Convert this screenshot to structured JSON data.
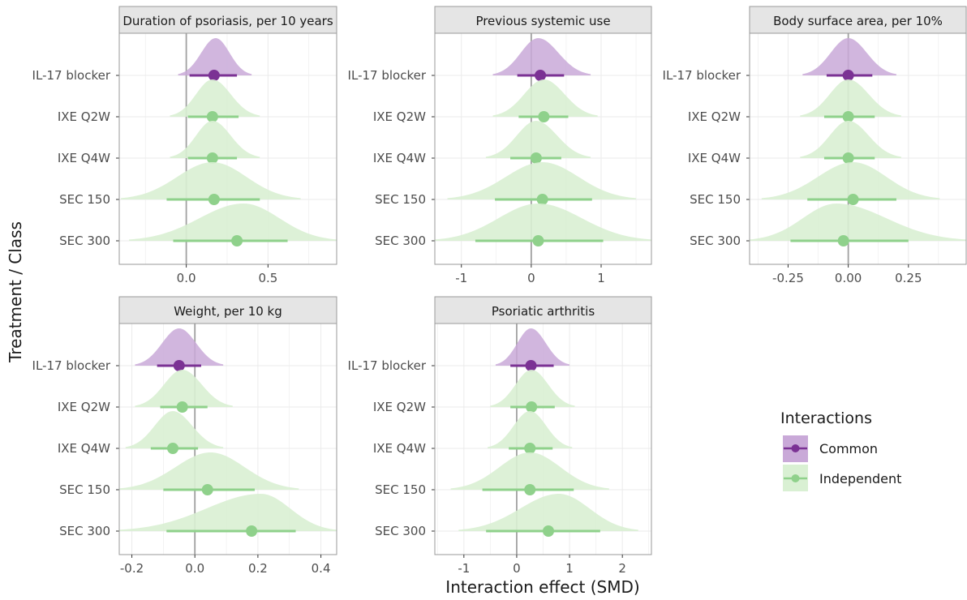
{
  "figure": {
    "ylabel": "Treatment / Class",
    "xlabel": "Interaction effect (SMD)"
  },
  "legend": {
    "title": "Interactions",
    "entries": [
      {
        "label": "Common",
        "key": "common"
      },
      {
        "label": "Independent",
        "key": "independent"
      }
    ]
  },
  "colors": {
    "common_point": "#7b3294",
    "common_fill": "#c9a9d8",
    "independent_point": "#8fd18b",
    "independent_fill": "#d9f0d3",
    "strip_bg": "#e5e5e5",
    "zero_line": "#a0a0a0",
    "grid": "#ebebeb"
  },
  "chart_data": [
    {
      "type": "forest-halfeye",
      "title": "Duration of psoriasis, per 10 years",
      "xlim": [
        -0.41,
        0.92
      ],
      "xticks": [
        0.0,
        0.5
      ],
      "xtick_labels": [
        "0.0",
        "0.5"
      ],
      "rows": [
        {
          "label": "IL-17 blocker",
          "group": "common",
          "estimate": 0.17,
          "lower": 0.02,
          "upper": 0.31,
          "dist_lo": -0.05,
          "dist_hi": 0.4,
          "mode": 0.18
        },
        {
          "label": "IXE Q2W",
          "group": "independent",
          "estimate": 0.16,
          "lower": 0.01,
          "upper": 0.32,
          "dist_lo": -0.1,
          "dist_hi": 0.45,
          "mode": 0.16
        },
        {
          "label": "IXE Q4W",
          "group": "independent",
          "estimate": 0.16,
          "lower": 0.01,
          "upper": 0.31,
          "dist_lo": -0.1,
          "dist_hi": 0.45,
          "mode": 0.16
        },
        {
          "label": "SEC 150",
          "group": "independent",
          "estimate": 0.17,
          "lower": -0.12,
          "upper": 0.45,
          "dist_lo": -0.4,
          "dist_hi": 0.7,
          "mode": 0.16
        },
        {
          "label": "SEC 300",
          "group": "independent",
          "estimate": 0.31,
          "lower": -0.08,
          "upper": 0.62,
          "dist_lo": -0.35,
          "dist_hi": 0.92,
          "mode": 0.35
        }
      ]
    },
    {
      "type": "forest-halfeye",
      "title": "Previous systemic use",
      "xlim": [
        -1.38,
        1.72
      ],
      "xticks": [
        -1,
        0,
        1
      ],
      "xtick_labels": [
        "-1",
        "0",
        "1"
      ],
      "rows": [
        {
          "label": "IL-17 blocker",
          "group": "common",
          "estimate": 0.13,
          "lower": -0.2,
          "upper": 0.47,
          "dist_lo": -0.55,
          "dist_hi": 0.85,
          "mode": 0.1
        },
        {
          "label": "IXE Q2W",
          "group": "independent",
          "estimate": 0.18,
          "lower": -0.18,
          "upper": 0.53,
          "dist_lo": -0.55,
          "dist_hi": 0.95,
          "mode": 0.18
        },
        {
          "label": "IXE Q4W",
          "group": "independent",
          "estimate": 0.07,
          "lower": -0.3,
          "upper": 0.43,
          "dist_lo": -0.65,
          "dist_hi": 0.85,
          "mode": 0.07
        },
        {
          "label": "SEC 150",
          "group": "independent",
          "estimate": 0.16,
          "lower": -0.52,
          "upper": 0.87,
          "dist_lo": -1.2,
          "dist_hi": 1.5,
          "mode": 0.16
        },
        {
          "label": "SEC 300",
          "group": "independent",
          "estimate": 0.1,
          "lower": -0.8,
          "upper": 1.03,
          "dist_lo": -1.38,
          "dist_hi": 1.72,
          "mode": 0.1
        }
      ]
    },
    {
      "type": "forest-halfeye",
      "title": "Body surface area, per 10%",
      "xlim": [
        -0.41,
        0.49
      ],
      "xticks": [
        -0.25,
        0.0,
        0.25
      ],
      "xtick_labels": [
        "-0.25",
        "0.00",
        "0.25"
      ],
      "rows": [
        {
          "label": "IL-17 blocker",
          "group": "common",
          "estimate": 0.0,
          "lower": -0.09,
          "upper": 0.1,
          "dist_lo": -0.19,
          "dist_hi": 0.2,
          "mode": 0.0
        },
        {
          "label": "IXE Q2W",
          "group": "independent",
          "estimate": 0.0,
          "lower": -0.1,
          "upper": 0.11,
          "dist_lo": -0.2,
          "dist_hi": 0.22,
          "mode": 0.0
        },
        {
          "label": "IXE Q4W",
          "group": "independent",
          "estimate": 0.0,
          "lower": -0.1,
          "upper": 0.11,
          "dist_lo": -0.2,
          "dist_hi": 0.22,
          "mode": 0.0
        },
        {
          "label": "SEC 150",
          "group": "independent",
          "estimate": 0.02,
          "lower": -0.17,
          "upper": 0.2,
          "dist_lo": -0.36,
          "dist_hi": 0.38,
          "mode": 0.02
        },
        {
          "label": "SEC 300",
          "group": "independent",
          "estimate": -0.02,
          "lower": -0.24,
          "upper": 0.25,
          "dist_lo": -0.41,
          "dist_hi": 0.49,
          "mode": -0.05
        }
      ]
    },
    {
      "type": "forest-halfeye",
      "title": "Weight, per 10 kg",
      "xlim": [
        -0.24,
        0.45
      ],
      "xticks": [
        -0.2,
        0.0,
        0.2,
        0.4
      ],
      "xtick_labels": [
        "-0.2",
        "0.0",
        "0.2",
        "0.4"
      ],
      "rows": [
        {
          "label": "IL-17 blocker",
          "group": "common",
          "estimate": -0.05,
          "lower": -0.12,
          "upper": 0.02,
          "dist_lo": -0.19,
          "dist_hi": 0.09,
          "mode": -0.05
        },
        {
          "label": "IXE Q2W",
          "group": "independent",
          "estimate": -0.04,
          "lower": -0.11,
          "upper": 0.04,
          "dist_lo": -0.19,
          "dist_hi": 0.12,
          "mode": -0.04
        },
        {
          "label": "IXE Q4W",
          "group": "independent",
          "estimate": -0.07,
          "lower": -0.14,
          "upper": 0.01,
          "dist_lo": -0.22,
          "dist_hi": 0.09,
          "mode": -0.07
        },
        {
          "label": "SEC 150",
          "group": "independent",
          "estimate": 0.04,
          "lower": -0.1,
          "upper": 0.19,
          "dist_lo": -0.24,
          "dist_hi": 0.33,
          "mode": 0.05
        },
        {
          "label": "SEC 300",
          "group": "independent",
          "estimate": 0.18,
          "lower": -0.09,
          "upper": 0.32,
          "dist_lo": -0.24,
          "dist_hi": 0.45,
          "mode": 0.21
        }
      ]
    },
    {
      "type": "forest-halfeye",
      "title": "Psoriatic arthritis",
      "xlim": [
        -1.55,
        2.55
      ],
      "xticks": [
        -1,
        0,
        1,
        2
      ],
      "xtick_labels": [
        "-1",
        "0",
        "1",
        "2"
      ],
      "rows": [
        {
          "label": "IL-17 blocker",
          "group": "common",
          "estimate": 0.27,
          "lower": -0.12,
          "upper": 0.7,
          "dist_lo": -0.4,
          "dist_hi": 1.0,
          "mode": 0.27
        },
        {
          "label": "IXE Q2W",
          "group": "independent",
          "estimate": 0.28,
          "lower": -0.12,
          "upper": 0.72,
          "dist_lo": -0.5,
          "dist_hi": 1.1,
          "mode": 0.28
        },
        {
          "label": "IXE Q4W",
          "group": "independent",
          "estimate": 0.25,
          "lower": -0.15,
          "upper": 0.68,
          "dist_lo": -0.55,
          "dist_hi": 1.05,
          "mode": 0.25
        },
        {
          "label": "SEC 150",
          "group": "independent",
          "estimate": 0.25,
          "lower": -0.65,
          "upper": 1.08,
          "dist_lo": -1.25,
          "dist_hi": 1.75,
          "mode": 0.25
        },
        {
          "label": "SEC 300",
          "group": "independent",
          "estimate": 0.6,
          "lower": -0.58,
          "upper": 1.58,
          "dist_lo": -1.1,
          "dist_hi": 2.3,
          "mode": 0.8
        }
      ]
    }
  ]
}
